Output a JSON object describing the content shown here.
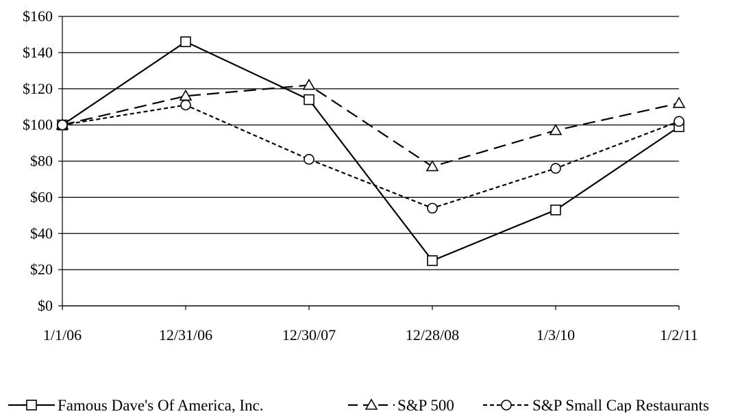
{
  "chart_data": {
    "type": "line",
    "title": "",
    "xlabel": "",
    "ylabel": "",
    "categories": [
      "1/1/06",
      "12/31/06",
      "12/30/07",
      "12/28/08",
      "1/3/10",
      "1/2/11"
    ],
    "ylim": [
      0,
      160
    ],
    "y_ticks": [
      "$0",
      "$20",
      "$40",
      "$60",
      "$80",
      "$100",
      "$120",
      "$140",
      "$160"
    ],
    "y_tick_values": [
      0,
      20,
      40,
      60,
      80,
      100,
      120,
      140,
      160
    ],
    "grid": "horizontal",
    "legend_position": "bottom",
    "series": [
      {
        "name": "Famous Dave's Of America, Inc.",
        "values": [
          100,
          146,
          114,
          25,
          53,
          99
        ],
        "marker": "square",
        "line_style": "solid",
        "color": "#000000"
      },
      {
        "name": "S&P 500",
        "values": [
          100,
          116,
          122,
          77,
          97,
          112
        ],
        "marker": "triangle",
        "line_style": "dashed",
        "color": "#000000"
      },
      {
        "name": "S&P Small Cap Restaurants",
        "values": [
          100,
          111,
          81,
          54,
          76,
          102
        ],
        "marker": "circle",
        "line_style": "dotted",
        "color": "#000000"
      }
    ]
  }
}
